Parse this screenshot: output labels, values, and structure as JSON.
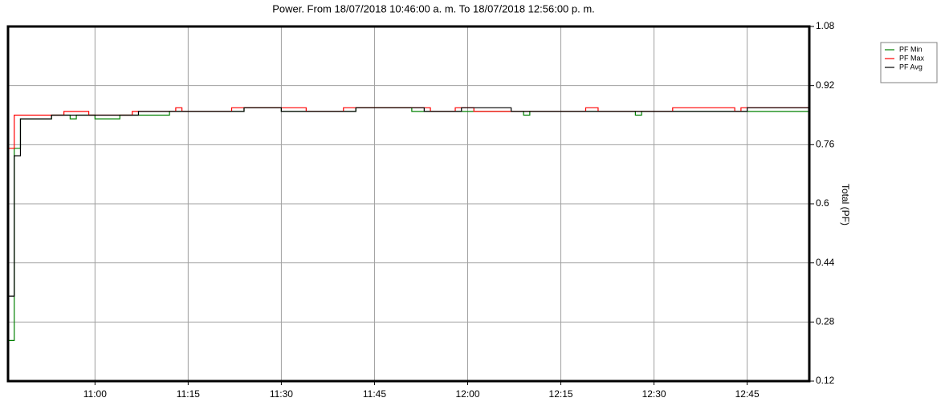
{
  "chart_data": {
    "type": "step-line",
    "title": "Power. From 18/07/2018 10:46:00 a. m. To 18/07/2018 12:56:00 p. m.",
    "y_label": "Total (PF)",
    "xlim": [
      "10:46",
      "12:55"
    ],
    "xticks": [
      "11:00",
      "11:15",
      "11:30",
      "11:45",
      "12:00",
      "12:15",
      "12:30",
      "12:45"
    ],
    "ylim": [
      0.12,
      1.08
    ],
    "yticks": [
      0.12,
      0.28,
      0.44,
      0.6,
      0.76,
      0.92,
      1.08
    ],
    "grid": true,
    "legend": "top-right",
    "series": [
      {
        "name": "PF Min",
        "color": "#008000",
        "x": [
          "10:46",
          "10:47",
          "10:48",
          "10:53",
          "10:56",
          "10:57",
          "10:58",
          "11:00",
          "11:04",
          "11:05",
          "11:12",
          "11:24",
          "11:30",
          "11:41",
          "11:42",
          "11:51",
          "11:53",
          "12:09",
          "12:10",
          "12:27",
          "12:28",
          "12:55"
        ],
        "values": [
          0.23,
          0.75,
          0.83,
          0.84,
          0.83,
          0.84,
          0.84,
          0.83,
          0.84,
          0.84,
          0.85,
          0.86,
          0.85,
          0.85,
          0.86,
          0.85,
          0.85,
          0.84,
          0.85,
          0.84,
          0.85,
          0.85
        ]
      },
      {
        "name": "PF Max",
        "color": "#ff0000",
        "x": [
          "10:46",
          "10:47",
          "10:55",
          "10:59",
          "11:01",
          "11:06",
          "11:13",
          "11:14",
          "11:22",
          "11:34",
          "11:40",
          "11:42",
          "11:52",
          "11:54",
          "11:58",
          "12:01",
          "12:19",
          "12:21",
          "12:33",
          "12:43",
          "12:44",
          "12:45",
          "12:55"
        ],
        "values": [
          0.75,
          0.84,
          0.85,
          0.84,
          0.84,
          0.85,
          0.86,
          0.85,
          0.86,
          0.85,
          0.86,
          0.86,
          0.86,
          0.85,
          0.86,
          0.85,
          0.86,
          0.85,
          0.86,
          0.85,
          0.86,
          0.86,
          0.86
        ]
      },
      {
        "name": "PF Avg",
        "color": "#000000",
        "x": [
          "10:46",
          "10:47",
          "10:48",
          "10:53",
          "11:03",
          "11:07",
          "11:24",
          "11:30",
          "11:42",
          "11:53",
          "11:59",
          "12:07",
          "12:45",
          "12:55"
        ],
        "values": [
          0.35,
          0.73,
          0.83,
          0.84,
          0.84,
          0.85,
          0.86,
          0.85,
          0.86,
          0.85,
          0.86,
          0.85,
          0.86,
          0.86
        ]
      }
    ]
  }
}
